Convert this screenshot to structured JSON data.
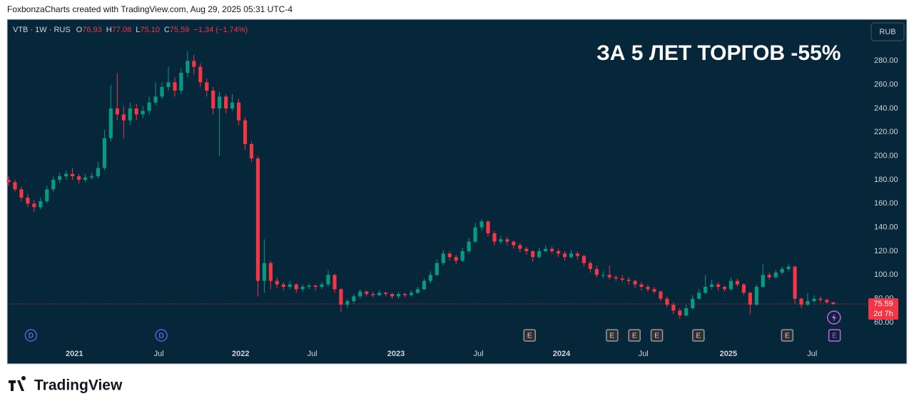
{
  "header": "FoxbonzaCharts created with TradingView.com, Aug 29, 2025 05:31 UTC-4",
  "footer": "TradingView",
  "chart_data": {
    "type": "candlestick",
    "symbol": "VTB · 1W · RUS",
    "legend": [
      {
        "label": "O",
        "value": "76.93"
      },
      {
        "label": "H",
        "value": "77.08"
      },
      {
        "label": "L",
        "value": "75.10"
      },
      {
        "label": "C",
        "value": "75.59"
      }
    ],
    "change": "−1.34 (−1.74%)",
    "currency": "RUB",
    "annotation": "ЗА 5 ЛЕТ ТОРГОВ -55%",
    "countdown": "2d 7h",
    "up_color": "#089981",
    "down_color": "#f23645",
    "grid": false,
    "ylim": [
      42,
      315
    ],
    "yticks": [
      {
        "value": 60,
        "label": "60.00"
      },
      {
        "value": 80,
        "label": "80.00"
      },
      {
        "value": 100,
        "label": "100.00"
      },
      {
        "value": 120,
        "label": "120.00"
      },
      {
        "value": 140,
        "label": "140.00"
      },
      {
        "value": 160,
        "label": "160.00"
      },
      {
        "value": 180,
        "label": "180.00"
      },
      {
        "value": 200,
        "label": "200.00"
      },
      {
        "value": 220,
        "label": "220.00"
      },
      {
        "value": 240,
        "label": "240.00"
      },
      {
        "value": 260,
        "label": "260.00"
      },
      {
        "value": 280,
        "label": "280.00"
      }
    ],
    "xticks": [
      {
        "value": 10.3,
        "label": "2021"
      },
      {
        "value": 23.5,
        "label": "Jul"
      },
      {
        "value": 36.3,
        "label": "2022"
      },
      {
        "value": 47.5,
        "label": "Jul"
      },
      {
        "value": 60.6,
        "label": "2023"
      },
      {
        "value": 73.5,
        "label": "Jul"
      },
      {
        "value": 86.5,
        "label": "2024"
      },
      {
        "value": 99.3,
        "label": "Jul"
      },
      {
        "value": 112.6,
        "label": "2025"
      },
      {
        "value": 125.7,
        "label": "Jul"
      }
    ],
    "events": [
      {
        "x": 3.5,
        "label": "D"
      },
      {
        "x": 23.9,
        "label": "D"
      },
      {
        "x": 81.5,
        "label": "E"
      },
      {
        "x": 94.4,
        "label": "E"
      },
      {
        "x": 97.9,
        "label": "E"
      },
      {
        "x": 101.4,
        "label": "E"
      },
      {
        "x": 107.9,
        "label": "E"
      },
      {
        "x": 121.8,
        "label": "E"
      },
      {
        "x": 129.2,
        "label": "E"
      }
    ],
    "ohlc": [
      [
        180,
        183,
        175,
        178
      ],
      [
        178,
        180,
        170,
        172
      ],
      [
        172,
        174,
        162,
        165
      ],
      [
        165,
        168,
        157,
        160
      ],
      [
        160,
        163,
        153,
        157
      ],
      [
        157,
        165,
        155,
        162
      ],
      [
        162,
        175,
        160,
        172
      ],
      [
        172,
        183,
        170,
        180
      ],
      [
        180,
        186,
        177,
        183
      ],
      [
        183,
        188,
        180,
        185
      ],
      [
        185,
        190,
        180,
        183
      ],
      [
        183,
        185,
        177,
        180
      ],
      [
        180,
        185,
        178,
        182
      ],
      [
        182,
        186,
        180,
        183
      ],
      [
        183,
        195,
        181,
        190
      ],
      [
        190,
        222,
        188,
        215
      ],
      [
        215,
        260,
        212,
        240
      ],
      [
        240,
        270,
        230,
        235
      ],
      [
        235,
        242,
        215,
        230
      ],
      [
        230,
        245,
        226,
        240
      ],
      [
        240,
        244,
        230,
        235
      ],
      [
        235,
        242,
        232,
        238
      ],
      [
        238,
        250,
        235,
        245
      ],
      [
        245,
        262,
        243,
        250
      ],
      [
        250,
        262,
        248,
        258
      ],
      [
        258,
        275,
        255,
        262
      ],
      [
        262,
        266,
        250,
        255
      ],
      [
        255,
        274,
        252,
        270
      ],
      [
        270,
        288,
        266,
        280
      ],
      [
        280,
        285,
        268,
        275
      ],
      [
        275,
        278,
        258,
        262
      ],
      [
        262,
        265,
        250,
        255
      ],
      [
        255,
        258,
        235,
        240
      ],
      [
        240,
        254,
        200,
        250
      ],
      [
        250,
        252,
        236,
        240
      ],
      [
        240,
        252,
        238,
        245
      ],
      [
        245,
        248,
        226,
        230
      ],
      [
        230,
        233,
        205,
        210
      ],
      [
        210,
        212,
        195,
        198
      ],
      [
        198,
        200,
        82,
        95
      ],
      [
        95,
        130,
        85,
        110
      ],
      [
        110,
        112,
        88,
        95
      ],
      [
        95,
        98,
        89,
        92
      ],
      [
        92,
        94,
        87,
        90
      ],
      [
        90,
        95,
        88,
        92
      ],
      [
        92,
        93,
        85,
        88
      ],
      [
        88,
        92,
        86,
        90
      ],
      [
        90,
        93,
        88,
        91
      ],
      [
        91,
        92,
        87,
        90
      ],
      [
        90,
        94,
        88,
        92
      ],
      [
        92,
        104,
        90,
        100
      ],
      [
        100,
        101,
        85,
        88
      ],
      [
        88,
        89,
        69,
        75
      ],
      [
        75,
        80,
        72,
        78
      ],
      [
        78,
        84,
        76,
        82
      ],
      [
        82,
        88,
        80,
        86
      ],
      [
        86,
        87,
        82,
        84
      ],
      [
        84,
        86,
        81,
        83
      ],
      [
        83,
        87,
        82,
        85
      ],
      [
        85,
        86,
        82,
        84
      ],
      [
        84,
        85,
        80,
        82
      ],
      [
        82,
        86,
        80,
        84
      ],
      [
        84,
        85,
        81,
        83
      ],
      [
        83,
        87,
        82,
        85
      ],
      [
        85,
        90,
        84,
        88
      ],
      [
        88,
        97,
        87,
        95
      ],
      [
        95,
        103,
        93,
        100
      ],
      [
        100,
        113,
        99,
        110
      ],
      [
        110,
        121,
        108,
        118
      ],
      [
        118,
        120,
        112,
        115
      ],
      [
        115,
        117,
        109,
        112
      ],
      [
        112,
        123,
        111,
        120
      ],
      [
        120,
        131,
        118,
        128
      ],
      [
        128,
        144,
        127,
        140
      ],
      [
        140,
        147,
        137,
        145
      ],
      [
        145,
        146,
        132,
        135
      ],
      [
        135,
        137,
        125,
        128
      ],
      [
        128,
        133,
        126,
        130
      ],
      [
        130,
        132,
        125,
        128
      ],
      [
        128,
        129,
        122,
        125
      ],
      [
        125,
        127,
        119,
        122
      ],
      [
        122,
        124,
        117,
        120
      ],
      [
        120,
        121,
        111,
        115
      ],
      [
        115,
        123,
        114,
        120
      ],
      [
        120,
        125,
        119,
        122
      ],
      [
        122,
        124,
        118,
        120
      ],
      [
        120,
        122,
        115,
        118
      ],
      [
        118,
        120,
        112,
        115
      ],
      [
        115,
        121,
        114,
        118
      ],
      [
        118,
        120,
        113,
        116
      ],
      [
        116,
        117,
        107,
        110
      ],
      [
        110,
        112,
        102,
        105
      ],
      [
        105,
        108,
        98,
        100
      ],
      [
        100,
        103,
        97,
        100
      ],
      [
        100,
        108,
        96,
        98
      ],
      [
        98,
        100,
        95,
        97
      ],
      [
        97,
        100,
        94,
        96
      ],
      [
        96,
        98,
        92,
        95
      ],
      [
        95,
        96,
        89,
        92
      ],
      [
        92,
        94,
        87,
        90
      ],
      [
        90,
        92,
        86,
        88
      ],
      [
        88,
        90,
        84,
        86
      ],
      [
        86,
        87,
        78,
        80
      ],
      [
        80,
        82,
        73,
        75
      ],
      [
        75,
        77,
        67,
        70
      ],
      [
        70,
        72,
        63,
        66
      ],
      [
        66,
        75,
        65,
        72
      ],
      [
        72,
        83,
        71,
        80
      ],
      [
        80,
        88,
        79,
        85
      ],
      [
        85,
        100,
        84,
        90
      ],
      [
        90,
        96,
        88,
        92
      ],
      [
        92,
        94,
        87,
        90
      ],
      [
        90,
        91,
        86,
        88
      ],
      [
        88,
        98,
        87,
        95
      ],
      [
        95,
        97,
        90,
        92
      ],
      [
        92,
        93,
        83,
        85
      ],
      [
        85,
        86,
        67,
        75
      ],
      [
        75,
        92,
        74,
        90
      ],
      [
        90,
        109,
        89,
        100
      ],
      [
        100,
        102,
        96,
        98
      ],
      [
        98,
        104,
        97,
        102
      ],
      [
        102,
        107,
        100,
        105
      ],
      [
        105,
        109,
        103,
        107
      ],
      [
        107,
        108,
        76,
        80
      ],
      [
        80,
        81,
        72,
        75
      ],
      [
        75,
        85,
        74,
        78
      ],
      [
        78,
        83,
        77,
        80
      ],
      [
        80,
        82,
        77,
        79
      ],
      [
        79,
        80,
        76,
        77
      ],
      [
        76.93,
        77.08,
        75.1,
        75.59
      ]
    ]
  }
}
